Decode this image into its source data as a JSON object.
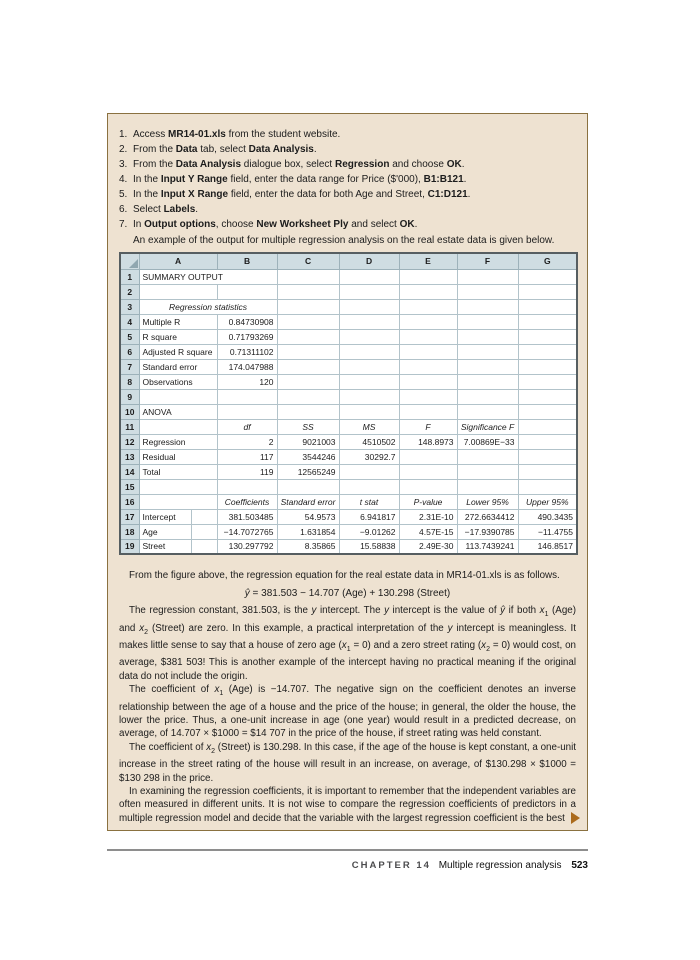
{
  "colors": {
    "box_background": "#eee2d1",
    "box_border": "#8a7140",
    "sheet_header_fill": "#cfdde2",
    "sheet_grid": "#b2c3ca",
    "continuation_arrow": "#ab6b1d"
  },
  "instructions": {
    "items": [
      {
        "segments": [
          {
            "t": "Access "
          },
          {
            "t": "MR14-01.xls",
            "b": true
          },
          {
            "t": " from the student website."
          }
        ]
      },
      {
        "segments": [
          {
            "t": "From the "
          },
          {
            "t": "Data",
            "b": true
          },
          {
            "t": " tab, select "
          },
          {
            "t": "Data Analysis",
            "b": true
          },
          {
            "t": "."
          }
        ]
      },
      {
        "segments": [
          {
            "t": "From the "
          },
          {
            "t": "Data Analysis",
            "b": true
          },
          {
            "t": " dialogue box, select "
          },
          {
            "t": "Regression",
            "b": true
          },
          {
            "t": " and choose "
          },
          {
            "t": "OK",
            "b": true
          },
          {
            "t": "."
          }
        ]
      },
      {
        "segments": [
          {
            "t": "In the "
          },
          {
            "t": "Input Y Range",
            "b": true
          },
          {
            "t": " field, enter the data range for Price ($'000), "
          },
          {
            "t": "B1:B121",
            "b": true
          },
          {
            "t": "."
          }
        ]
      },
      {
        "segments": [
          {
            "t": "In the "
          },
          {
            "t": "Input X Range",
            "b": true
          },
          {
            "t": " field, enter the data for both Age and Street, "
          },
          {
            "t": "C1:D121",
            "b": true
          },
          {
            "t": "."
          }
        ]
      },
      {
        "segments": [
          {
            "t": "Select "
          },
          {
            "t": "Labels",
            "b": true
          },
          {
            "t": "."
          }
        ]
      },
      {
        "segments": [
          {
            "t": "In "
          },
          {
            "t": "Output options",
            "b": true
          },
          {
            "t": ", choose "
          },
          {
            "t": "New Worksheet Ply",
            "b": true
          },
          {
            "t": " and select "
          },
          {
            "t": "OK",
            "b": true
          },
          {
            "t": "."
          }
        ]
      }
    ],
    "outro": "An example of the output for multiple regression analysis on the real estate data is given below."
  },
  "spreadsheet": {
    "column_headers": [
      "A",
      "B",
      "C",
      "D",
      "E",
      "F",
      "G"
    ],
    "rows": [
      {
        "n": "1",
        "cells": [
          {
            "s": 3,
            "t": "SUMMARY OUTPUT"
          },
          {},
          {},
          {},
          {},
          {}
        ]
      },
      {
        "n": "2",
        "cells": [
          {
            "s": 2
          },
          {},
          {},
          {},
          {},
          {},
          {}
        ]
      },
      {
        "n": "3",
        "rt": "AB",
        "rb": "AB",
        "cells": [
          {
            "s": 3,
            "t": "Regression statistics",
            "cls": "rs"
          },
          {},
          {},
          {},
          {},
          {}
        ]
      },
      {
        "n": "4",
        "cells": [
          {
            "s": 2,
            "t": "Multiple R"
          },
          {
            "t": "0.84730908",
            "a": "r"
          },
          {},
          {},
          {},
          {},
          {}
        ]
      },
      {
        "n": "5",
        "cells": [
          {
            "s": 2,
            "t": "R square"
          },
          {
            "t": "0.71793269",
            "a": "r"
          },
          {},
          {},
          {},
          {},
          {}
        ]
      },
      {
        "n": "6",
        "cells": [
          {
            "s": 2,
            "t": "Adjusted R square"
          },
          {
            "t": "0.71311102",
            "a": "r"
          },
          {},
          {},
          {},
          {},
          {}
        ]
      },
      {
        "n": "7",
        "cells": [
          {
            "s": 2,
            "t": "Standard error"
          },
          {
            "t": "174.047988",
            "a": "r"
          },
          {},
          {},
          {},
          {},
          {}
        ]
      },
      {
        "n": "8",
        "rb": "AB",
        "cells": [
          {
            "s": 2,
            "t": "Observations"
          },
          {
            "t": "120",
            "a": "r"
          },
          {},
          {},
          {},
          {},
          {}
        ]
      },
      {
        "n": "9",
        "cells": [
          {
            "s": 2
          },
          {},
          {},
          {},
          {},
          {},
          {}
        ]
      },
      {
        "n": "10",
        "cells": [
          {
            "s": 2,
            "t": "ANOVA"
          },
          {},
          {},
          {},
          {},
          {},
          {}
        ]
      },
      {
        "n": "11",
        "rt": "AF",
        "rb": "AF",
        "cells": [
          {
            "s": 2
          },
          {
            "t": "df",
            "a": "c",
            "i": true
          },
          {
            "t": "SS",
            "a": "c",
            "i": true
          },
          {
            "t": "MS",
            "a": "c",
            "i": true
          },
          {
            "t": "F",
            "a": "c",
            "i": true
          },
          {
            "t": "Significance F",
            "a": "c",
            "i": true
          },
          {}
        ]
      },
      {
        "n": "12",
        "cells": [
          {
            "s": 2,
            "t": "Regression"
          },
          {
            "t": "2",
            "a": "r"
          },
          {
            "t": "9021003",
            "a": "r"
          },
          {
            "t": "4510502",
            "a": "r"
          },
          {
            "t": "148.8973",
            "a": "r"
          },
          {
            "t": "7.00869E−33",
            "a": "r"
          },
          {}
        ]
      },
      {
        "n": "13",
        "cells": [
          {
            "s": 2,
            "t": "Residual"
          },
          {
            "t": "117",
            "a": "r"
          },
          {
            "t": "3544246",
            "a": "r"
          },
          {
            "t": "30292.7",
            "a": "r"
          },
          {},
          {},
          {}
        ]
      },
      {
        "n": "14",
        "rb": "AF",
        "cells": [
          {
            "s": 2,
            "t": "Total"
          },
          {
            "t": "119",
            "a": "r"
          },
          {
            "t": "12565249",
            "a": "r"
          },
          {},
          {},
          {},
          {}
        ]
      },
      {
        "n": "15",
        "cells": [
          {
            "s": 2
          },
          {},
          {},
          {},
          {},
          {},
          {}
        ]
      },
      {
        "n": "16",
        "rt": "AG",
        "rb": "AG",
        "cells": [
          {
            "s": 2
          },
          {
            "t": "Coefficients",
            "a": "c",
            "i": true
          },
          {
            "t": "Standard error",
            "a": "c",
            "i": true
          },
          {
            "t": "t stat",
            "a": "c",
            "i": true
          },
          {
            "t": "P-value",
            "a": "c",
            "i": true
          },
          {
            "t": "Lower 95%",
            "a": "c",
            "i": true
          },
          {
            "t": "Upper 95%",
            "a": "c",
            "i": true
          }
        ]
      },
      {
        "n": "17",
        "cells": [
          {
            "t": "Intercept"
          },
          {},
          {
            "t": "381.503485",
            "a": "r"
          },
          {
            "t": "54.9573",
            "a": "r"
          },
          {
            "t": "6.941817",
            "a": "r"
          },
          {
            "t": "2.31E-10",
            "a": "r"
          },
          {
            "t": "272.6634412",
            "a": "r"
          },
          {
            "t": "490.3435",
            "a": "r"
          }
        ]
      },
      {
        "n": "18",
        "cells": [
          {
            "t": "Age"
          },
          {},
          {
            "t": "−14.7072765",
            "a": "r"
          },
          {
            "t": "1.631854",
            "a": "r"
          },
          {
            "t": "−9.01262",
            "a": "r"
          },
          {
            "t": "4.57E-15",
            "a": "r"
          },
          {
            "t": "−17.9390785",
            "a": "r"
          },
          {
            "t": "−11.4755",
            "a": "r"
          }
        ]
      },
      {
        "n": "19",
        "rb": "AG",
        "cells": [
          {
            "t": "Street"
          },
          {},
          {
            "t": "130.297792",
            "a": "r"
          },
          {
            "t": "8.35865",
            "a": "r"
          },
          {
            "t": "15.58838",
            "a": "r"
          },
          {
            "t": "2.49E-30",
            "a": "r"
          },
          {
            "t": "113.7439241",
            "a": "r"
          },
          {
            "t": "146.8517",
            "a": "r"
          }
        ]
      }
    ]
  },
  "body": {
    "intro": "From the figure above, the regression equation for the real estate data in MR14-01.xls is as follows.",
    "equation": [
      {
        "t": "ŷ",
        "i": true
      },
      {
        "t": " = 381.503 − 14.707 (Age) + 130.298 (Street)"
      }
    ],
    "paragraphs": [
      {
        "segments": [
          {
            "t": "The regression constant, 381.503, is the "
          },
          {
            "t": "y",
            "i": true
          },
          {
            "t": " intercept. The "
          },
          {
            "t": "y",
            "i": true
          },
          {
            "t": " intercept is the value of "
          },
          {
            "t": "ŷ",
            "i": true
          },
          {
            "t": " if both "
          },
          {
            "t": "x",
            "i": true
          },
          {
            "t": "1",
            "sub": true
          },
          {
            "t": " (Age) and "
          },
          {
            "t": "x",
            "i": true
          },
          {
            "t": "2",
            "sub": true
          },
          {
            "t": " (Street) are zero. In this example, a practical interpretation of the "
          },
          {
            "t": "y",
            "i": true
          },
          {
            "t": " intercept is meaningless. It makes little sense to say that a house of zero age ("
          },
          {
            "t": "x",
            "i": true
          },
          {
            "t": "1",
            "sub": true
          },
          {
            "t": " = 0) and a zero street rating ("
          },
          {
            "t": "x",
            "i": true
          },
          {
            "t": "2",
            "sub": true
          },
          {
            "t": " = 0) would cost, on average, $381 503! This is another example of the intercept having no practical meaning if the original data do not include the origin."
          }
        ]
      },
      {
        "segments": [
          {
            "t": "The coefficient of "
          },
          {
            "t": "x",
            "i": true
          },
          {
            "t": "1",
            "sub": true
          },
          {
            "t": " (Age) is −14.707. The negative sign on the coefficient denotes an inverse relationship between the age of a house and the price of the house; in general, the older the house, the lower the price. Thus, a one-unit increase in age (one year) would result in a predicted decrease, on average, of 14.707 × $1000 = $14 707 in the price of the house, if street rating was held constant."
          }
        ]
      },
      {
        "segments": [
          {
            "t": "The coefficient of "
          },
          {
            "t": "x",
            "i": true
          },
          {
            "t": "2",
            "sub": true
          },
          {
            "t": " (Street) is 130.298. In this case, if the age of the house is kept constant, a one-unit increase in the street rating of the house will result in an increase, on average, of $130.298 × $1000 = $130 298 in the price."
          }
        ]
      },
      {
        "segments": [
          {
            "t": "In examining the regression coefficients, it is important to remember that the independent variables are often measured in different units. It is not wise to compare the regression coefficients of predictors in a multiple regression model and decide that the variable with the largest regression coefficient is the best"
          }
        ]
      }
    ]
  },
  "footer": {
    "chapter_label": "CHAPTER 14",
    "chapter_title": "Multiple regression analysis",
    "page_number": "523"
  }
}
